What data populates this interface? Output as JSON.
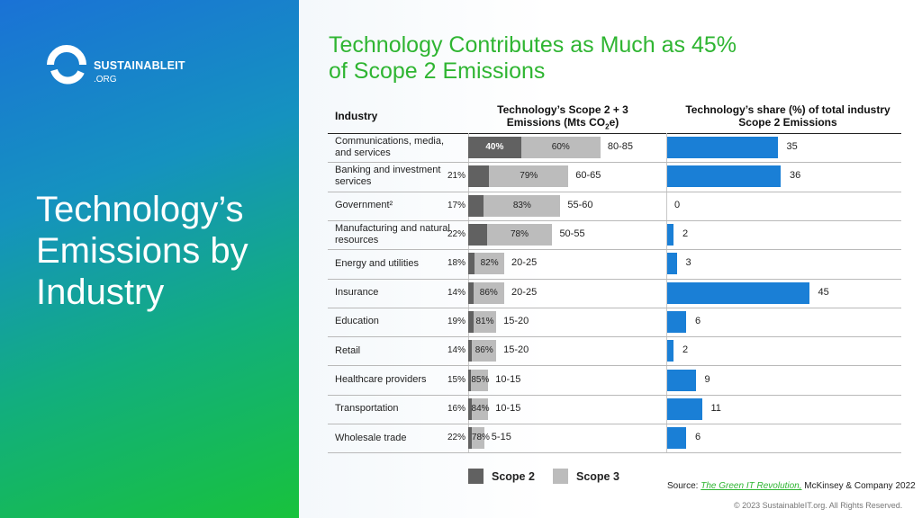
{
  "brand": {
    "name": "SUSTAINABLEIT",
    "domain": ".ORG"
  },
  "left_title": "Technology’s Emissions by Industry",
  "title_line1": "Technology Contributes as Much as 45%",
  "title_line2": "of Scope 2 Emissions",
  "headers": {
    "industry": "Industry",
    "emissions_line1": "Technology’s Scope 2 + 3",
    "emissions_line2_pre": "Emissions (Mts CO",
    "emissions_sub": "2",
    "emissions_line2_post": "e)",
    "share_line1": "Technology’s share (%) of total industry",
    "share_line2": "Scope 2 Emissions"
  },
  "legend": {
    "scope2": "Scope 2",
    "scope3": "Scope 3"
  },
  "source_prefix": "Source: ",
  "source_link": "The Green IT Revolution,",
  "source_suffix": " McKinsey & Company 2022",
  "copyright": "© 2023 SustainableIT.org. All Rights Reserved.",
  "colors": {
    "scope2": "#616161",
    "scope3": "#bcbcbc",
    "share": "#1a7fd6",
    "title_green": "#2fb532"
  },
  "chart_data": {
    "type": "bar",
    "categories": [
      "Communications, media, and services",
      "Banking and investment services",
      "Government²",
      "Manufacturing and natural resources",
      "Energy and utilities",
      "Insurance",
      "Education",
      "Retail",
      "Healthcare providers",
      "Transportation",
      "Wholesale trade"
    ],
    "emission_ranges": [
      "80-85",
      "60-65",
      "55-60",
      "50-55",
      "20-25",
      "20-25",
      "15-20",
      "15-20",
      "10-15",
      "10-15",
      "5-15"
    ],
    "emission_range_mid": [
      82.5,
      62.5,
      57.5,
      52.5,
      22.5,
      22.5,
      17.5,
      17.5,
      12.5,
      12.5,
      10
    ],
    "series": [
      {
        "name": "Scope 2",
        "values": [
          40,
          21,
          17,
          22,
          18,
          14,
          19,
          14,
          15,
          16,
          22
        ]
      },
      {
        "name": "Scope 3",
        "values": [
          60,
          79,
          83,
          78,
          82,
          86,
          81,
          86,
          85,
          84,
          78
        ]
      }
    ],
    "share_of_scope2": [
      35,
      36,
      0,
      2,
      3,
      45,
      6,
      2,
      9,
      11,
      6
    ]
  }
}
